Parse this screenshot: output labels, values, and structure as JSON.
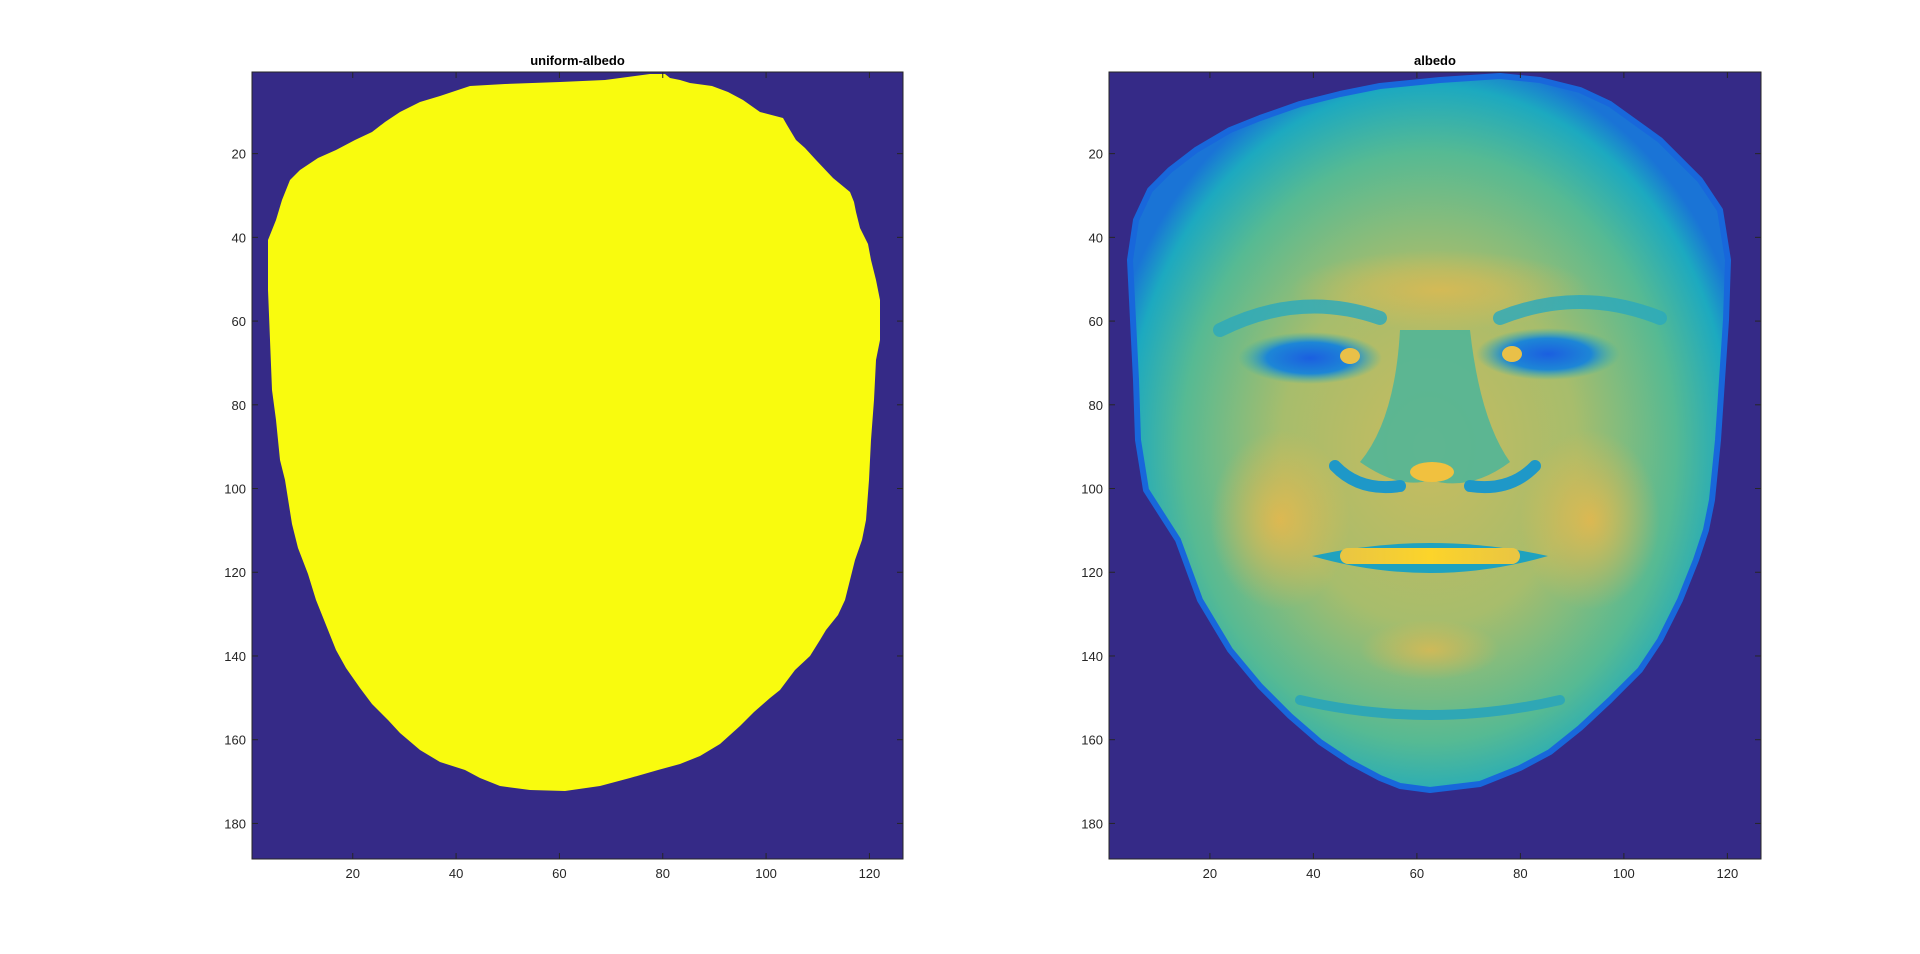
{
  "chart_data": [
    {
      "type": "heatmap",
      "title": "uniform-albedo",
      "xlabel": "",
      "ylabel": "",
      "xlim": [
        0.5,
        126.5
      ],
      "ylim": [
        188.5,
        0.5
      ],
      "y_direction": "reverse",
      "xticks": [
        20,
        40,
        60,
        80,
        100,
        120
      ],
      "yticks": [
        20,
        40,
        60,
        80,
        100,
        120,
        140,
        160,
        180
      ],
      "colormap": "parula",
      "colors": {
        "background": "#352a87",
        "face": "#f9fb0e"
      },
      "content": "binary face mask: uniform value inside the face region, zero outside"
    },
    {
      "type": "heatmap",
      "title": "albedo",
      "xlabel": "",
      "ylabel": "",
      "xlim": [
        0.5,
        126.5
      ],
      "ylim": [
        188.5,
        0.5
      ],
      "y_direction": "reverse",
      "xticks": [
        20,
        40,
        60,
        80,
        100,
        120
      ],
      "yticks": [
        20,
        40,
        60,
        80,
        100,
        120,
        140,
        160,
        180
      ],
      "colormap": "parula",
      "colors": {
        "background": "#352a87",
        "edge": "#0f5cdd",
        "low": "#1582d1",
        "mid_low": "#06a7c6",
        "mid": "#38b99e",
        "mid_high": "#92bf73",
        "high": "#d9ba56",
        "highest": "#fcce2e"
      },
      "content": "estimated albedo map of a face"
    }
  ]
}
